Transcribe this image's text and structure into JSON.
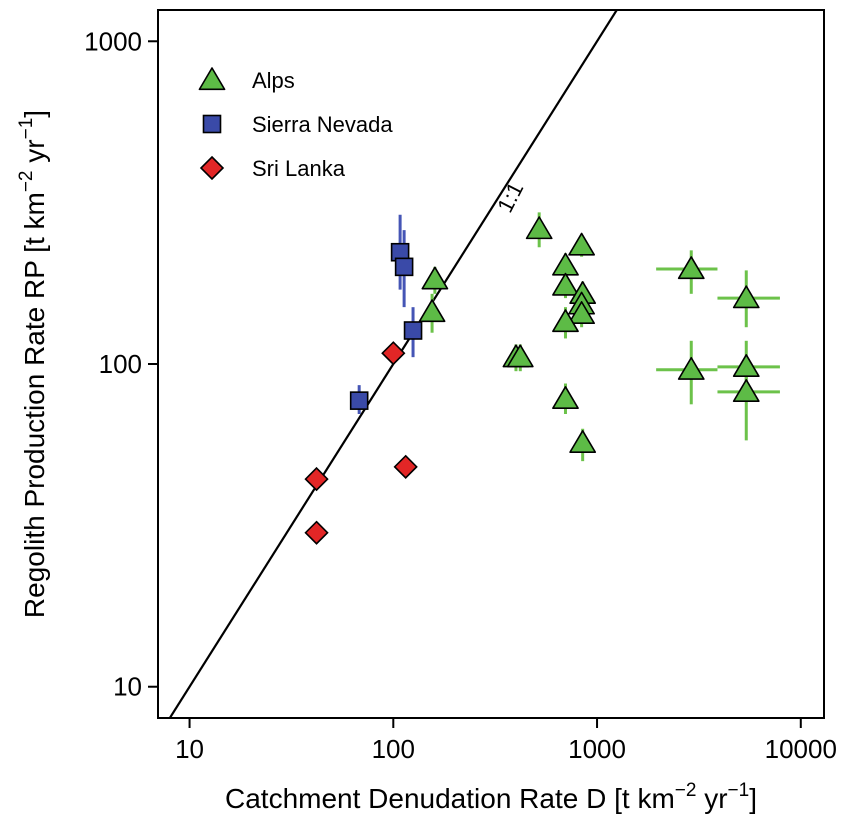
{
  "chart_data": {
    "type": "scatter",
    "xscale": "log",
    "yscale": "log",
    "xlim": [
      7,
      13000
    ],
    "ylim": [
      8,
      1250
    ],
    "x_ticks": [
      10,
      100,
      1000,
      10000
    ],
    "y_ticks": [
      10,
      100,
      1000
    ],
    "x_tick_labels": [
      "10",
      "100",
      "1000",
      "10000"
    ],
    "y_tick_labels": [
      "10",
      "100",
      "1000"
    ],
    "xlabel": {
      "main": "Catchment Denudation Rate D [t km",
      "sup1": "−2",
      "mid": " yr",
      "sup2": "−1",
      "end": "]"
    },
    "ylabel": {
      "main": "Regolith Production Rate RP [t km",
      "sup1": "−2",
      "mid": " yr",
      "sup2": "−1",
      "end": "]"
    },
    "grid": false,
    "legend_position": "top-left",
    "annotation": "1:1",
    "reference_line": "1:1",
    "series": [
      {
        "name": "Alps",
        "marker": "triangle",
        "color": "#5dbb46",
        "errcolor": "#6cc24a",
        "points": [
          {
            "x": 520,
            "y": 262,
            "yerr": [
              230,
              295
            ]
          },
          {
            "x": 840,
            "y": 233,
            "yerr": [
              215,
              250
            ]
          },
          {
            "x": 700,
            "y": 202,
            "yerr": [
              185,
              220
            ]
          },
          {
            "x": 700,
            "y": 175,
            "yerr": [
              160,
              190
            ]
          },
          {
            "x": 850,
            "y": 165,
            "yerr": [
              150,
              180
            ]
          },
          {
            "x": 840,
            "y": 153,
            "yerr": [
              140,
              168
            ]
          },
          {
            "x": 840,
            "y": 143,
            "yerr": [
              130,
              157
            ]
          },
          {
            "x": 700,
            "y": 135,
            "yerr": [
              120,
              150
            ]
          },
          {
            "x": 160,
            "y": 183,
            "yerr": [
              165,
              200
            ]
          },
          {
            "x": 155,
            "y": 145,
            "yerr": [
              125,
              165
            ]
          },
          {
            "x": 400,
            "y": 105,
            "yerr": [
              95,
              115
            ]
          },
          {
            "x": 420,
            "y": 105,
            "yerr": [
              95,
              115
            ]
          },
          {
            "x": 700,
            "y": 78,
            "yerr": [
              70,
              87
            ]
          },
          {
            "x": 850,
            "y": 57,
            "yerr": [
              50,
              63
            ]
          },
          {
            "x": 2900,
            "y": 197,
            "yerr": [
              165,
              225
            ],
            "xerr": [
              1950,
              3900
            ]
          },
          {
            "x": 2900,
            "y": 96,
            "yerr": [
              75,
              118
            ],
            "xerr": [
              1950,
              3900
            ]
          },
          {
            "x": 5400,
            "y": 160,
            "yerr": [
              130,
              195
            ],
            "xerr": [
              3900,
              7900
            ]
          },
          {
            "x": 5400,
            "y": 98,
            "yerr": [
              80,
              118
            ],
            "xerr": [
              3900,
              7900
            ]
          },
          {
            "x": 5400,
            "y": 82,
            "yerr": [
              58,
              105
            ],
            "xerr": [
              3900,
              7900
            ]
          }
        ]
      },
      {
        "name": "Sierra Nevada",
        "marker": "square",
        "color": "#3a4aa8",
        "errcolor": "#4555b5",
        "points": [
          {
            "x": 108,
            "y": 222,
            "yerr": [
              170,
              290
            ]
          },
          {
            "x": 113,
            "y": 200,
            "yerr": [
              150,
              260
            ]
          },
          {
            "x": 125,
            "y": 127,
            "yerr": [
              105,
              150
            ]
          },
          {
            "x": 68,
            "y": 77,
            "yerr": [
              70,
              86
            ]
          }
        ]
      },
      {
        "name": "Sri Lanka",
        "marker": "diamond",
        "color": "#e22626",
        "points": [
          {
            "x": 100,
            "y": 108
          },
          {
            "x": 42,
            "y": 44
          },
          {
            "x": 42,
            "y": 30
          },
          {
            "x": 115,
            "y": 48
          }
        ]
      }
    ]
  }
}
